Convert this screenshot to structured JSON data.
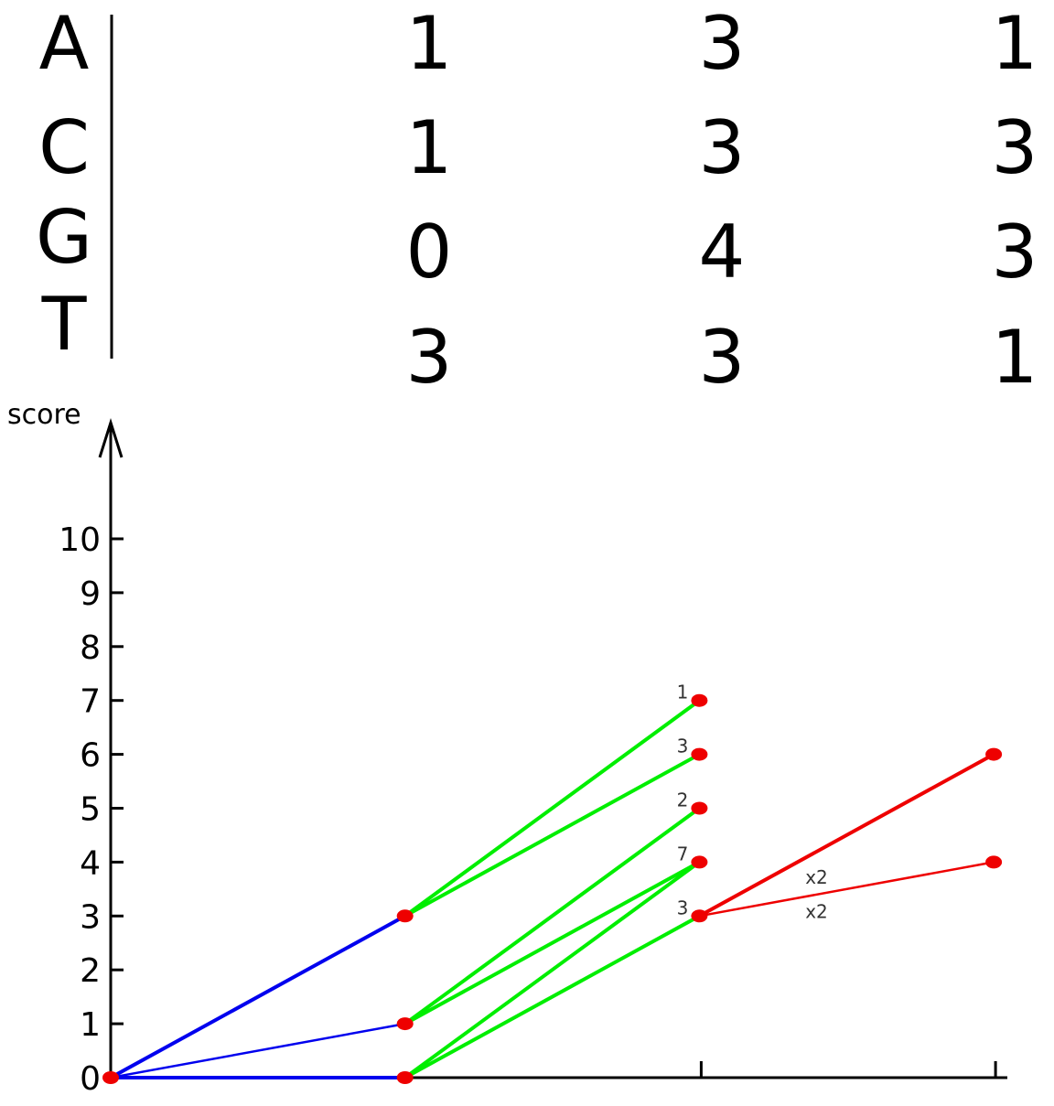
{
  "table": {
    "rows": [
      {
        "letter": "A",
        "values": [
          "1",
          "3",
          "1"
        ]
      },
      {
        "letter": "C",
        "values": [
          "1",
          "3",
          "3"
        ]
      },
      {
        "letter": "G",
        "values": [
          "0",
          "4",
          "3"
        ]
      },
      {
        "letter": "T",
        "values": [
          "3",
          "3",
          "1"
        ]
      }
    ]
  },
  "chart_data": {
    "type": "line",
    "ylabel": "score",
    "yticks": [
      "0",
      "1",
      "2",
      "3",
      "4",
      "5",
      "6",
      "7",
      "8",
      "9",
      "10"
    ],
    "ylim": [
      0,
      10
    ],
    "x_positions": [
      0,
      1,
      2,
      3
    ],
    "colors": {
      "blue": "#0000ee",
      "green": "#00ee00",
      "red": "#ee0000",
      "node": "#ee0000"
    },
    "nodes": [
      {
        "x": 0,
        "y": 0
      },
      {
        "x": 1,
        "y": 0
      },
      {
        "x": 1,
        "y": 1
      },
      {
        "x": 1,
        "y": 3
      },
      {
        "x": 2,
        "y": 3
      },
      {
        "x": 2,
        "y": 4
      },
      {
        "x": 2,
        "y": 5
      },
      {
        "x": 2,
        "y": 6
      },
      {
        "x": 2,
        "y": 7
      },
      {
        "x": 3,
        "y": 4
      },
      {
        "x": 3,
        "y": 6
      }
    ],
    "edges": [
      {
        "from": [
          0,
          0
        ],
        "to": [
          1,
          3
        ],
        "color": "blue",
        "thick": true
      },
      {
        "from": [
          0,
          0
        ],
        "to": [
          1,
          1
        ],
        "color": "blue",
        "thick": false
      },
      {
        "from": [
          0,
          0
        ],
        "to": [
          1,
          0
        ],
        "color": "blue",
        "thick": true
      },
      {
        "from": [
          1,
          3
        ],
        "to": [
          2,
          7
        ],
        "color": "green",
        "thick": true
      },
      {
        "from": [
          1,
          3
        ],
        "to": [
          2,
          6
        ],
        "color": "green",
        "thick": true
      },
      {
        "from": [
          1,
          1
        ],
        "to": [
          2,
          5
        ],
        "color": "green",
        "thick": true
      },
      {
        "from": [
          1,
          1
        ],
        "to": [
          2,
          4
        ],
        "color": "green",
        "thick": true
      },
      {
        "from": [
          1,
          0
        ],
        "to": [
          2,
          4
        ],
        "color": "green",
        "thick": true
      },
      {
        "from": [
          1,
          0
        ],
        "to": [
          2,
          3
        ],
        "color": "green",
        "thick": true
      },
      {
        "from": [
          2,
          3
        ],
        "to": [
          3,
          6
        ],
        "color": "red",
        "thick": true
      },
      {
        "from": [
          2,
          3
        ],
        "to": [
          3,
          4
        ],
        "color": "red",
        "thick": false
      }
    ],
    "node_counts": [
      {
        "x": 2,
        "y": 7,
        "label": "1"
      },
      {
        "x": 2,
        "y": 6,
        "label": "3"
      },
      {
        "x": 2,
        "y": 5,
        "label": "2"
      },
      {
        "x": 2,
        "y": 4,
        "label": "7"
      },
      {
        "x": 2,
        "y": 3,
        "label": "3"
      }
    ],
    "edge_labels": [
      {
        "x": 2.36,
        "y": 3.72,
        "label": "x2"
      },
      {
        "x": 2.36,
        "y": 3.08,
        "label": "x2"
      }
    ]
  }
}
